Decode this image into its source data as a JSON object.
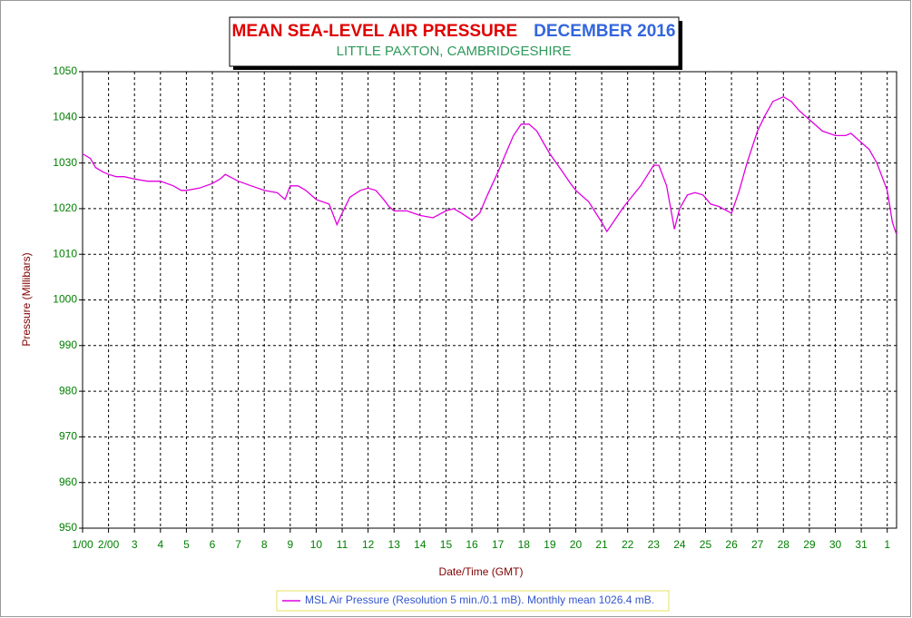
{
  "chart_data": {
    "type": "line",
    "title": "MEAN SEA-LEVEL AIR PRESSURE",
    "period": "DECEMBER 2016",
    "subtitle": "LITTLE PAXTON, CAMBRIDGESHIRE",
    "xlabel": "Date/Time (GMT)",
    "ylabel": "Pressure (Millibars)",
    "xlim": [
      1,
      32.36
    ],
    "ylim": [
      950,
      1050
    ],
    "xticks": [
      {
        "value": 1,
        "label": "1/00"
      },
      {
        "value": 2,
        "label": "2/00"
      },
      3,
      4,
      5,
      6,
      7,
      8,
      9,
      10,
      11,
      12,
      13,
      14,
      15,
      16,
      17,
      18,
      19,
      20,
      21,
      22,
      23,
      24,
      25,
      26,
      27,
      28,
      29,
      30,
      31,
      {
        "value": 32,
        "label": "1"
      }
    ],
    "yticks": [
      950,
      960,
      970,
      980,
      990,
      1000,
      1010,
      1020,
      1030,
      1040,
      1050
    ],
    "grid": true,
    "x": [
      1.0,
      1.3,
      1.5,
      1.8,
      2.0,
      2.3,
      2.6,
      3.0,
      3.5,
      4.0,
      4.5,
      4.8,
      5.0,
      5.5,
      6.0,
      6.3,
      6.5,
      7.0,
      7.5,
      8.0,
      8.5,
      8.8,
      9.0,
      9.3,
      9.6,
      10.0,
      10.5,
      10.8,
      11.0,
      11.3,
      11.7,
      12.0,
      12.3,
      12.6,
      12.8,
      13.0,
      13.5,
      14.0,
      14.5,
      15.0,
      15.3,
      15.6,
      16.0,
      16.3,
      16.6,
      17.0,
      17.3,
      17.6,
      17.9,
      18.2,
      18.5,
      18.8,
      19.0,
      19.5,
      19.8,
      20.0,
      20.5,
      21.0,
      21.2,
      21.5,
      21.8,
      22.0,
      22.5,
      23.0,
      23.2,
      23.5,
      23.8,
      24.0,
      24.3,
      24.6,
      24.9,
      25.2,
      25.5,
      26.0,
      26.3,
      26.6,
      27.0,
      27.3,
      27.6,
      28.0,
      28.3,
      28.6,
      29.0,
      29.5,
      30.0,
      30.4,
      30.6,
      31.0,
      31.3,
      31.6,
      32.0,
      32.2,
      32.35
    ],
    "series": [
      {
        "name": "MSL Air Pressure (Resolution 5 min./0.1 mB). Monthly mean 1026.4 mB.",
        "color": "#e000e0",
        "values": [
          1032,
          1031,
          1029,
          1028,
          1027.5,
          1027,
          1027,
          1026.5,
          1026,
          1026,
          1025,
          1024,
          1024,
          1024.5,
          1025.5,
          1026.5,
          1027.5,
          1026,
          1025,
          1024,
          1023.5,
          1022,
          1025,
          1025,
          1024,
          1022,
          1021,
          1016.5,
          1019,
          1022.5,
          1024,
          1024.5,
          1024,
          1022,
          1020.5,
          1019.5,
          1019.5,
          1018.5,
          1018,
          1019.5,
          1020,
          1019,
          1017.5,
          1019,
          1023,
          1028,
          1032,
          1036,
          1038.5,
          1038.5,
          1037,
          1034,
          1032,
          1028,
          1025.5,
          1024,
          1021.5,
          1017,
          1015,
          1017.5,
          1020,
          1021.5,
          1025,
          1029.5,
          1029.5,
          1025,
          1015.5,
          1020,
          1023,
          1023.5,
          1023,
          1021,
          1020.5,
          1019,
          1024,
          1030,
          1037,
          1040.5,
          1043.5,
          1044.5,
          1043.5,
          1041.5,
          1039.5,
          1037,
          1036,
          1036,
          1036.5,
          1034.5,
          1033,
          1030,
          1024,
          1017,
          1014.5
        ]
      }
    ]
  }
}
